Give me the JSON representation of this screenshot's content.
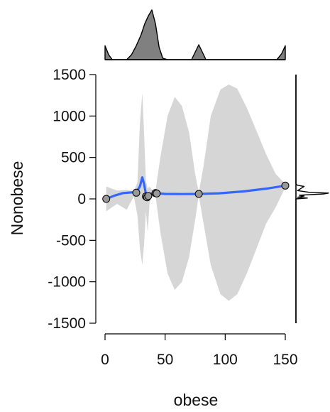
{
  "chart_data": {
    "type": "scatter",
    "xlabel": "obese",
    "ylabel": "Nonobese",
    "xlim": [
      0,
      150
    ],
    "ylim": [
      -1500,
      1500
    ],
    "x_ticks": [
      0,
      50,
      100,
      150
    ],
    "y_ticks": [
      1500,
      1000,
      500,
      0,
      -500,
      -1000,
      -1500
    ],
    "x_tick_labels": [
      "0",
      "50",
      "100",
      "150"
    ],
    "y_tick_labels": [
      "1500",
      "1000",
      "500",
      "0",
      "-500",
      "-1000",
      "-1500"
    ],
    "grid": false,
    "points": [
      {
        "x": 1,
        "y": 0
      },
      {
        "x": 26,
        "y": 75
      },
      {
        "x": 34,
        "y": 30
      },
      {
        "x": 35,
        "y": 20
      },
      {
        "x": 36,
        "y": 35
      },
      {
        "x": 42,
        "y": 70
      },
      {
        "x": 43,
        "y": 65
      },
      {
        "x": 78,
        "y": 60
      },
      {
        "x": 150,
        "y": 160
      }
    ],
    "smooth_line": [
      {
        "x": 1,
        "y": 0
      },
      {
        "x": 8,
        "y": 40
      },
      {
        "x": 15,
        "y": 70
      },
      {
        "x": 22,
        "y": 78
      },
      {
        "x": 26,
        "y": 80
      },
      {
        "x": 29,
        "y": 150
      },
      {
        "x": 31,
        "y": 260
      },
      {
        "x": 32.5,
        "y": 180
      },
      {
        "x": 34,
        "y": 60
      },
      {
        "x": 35,
        "y": 10
      },
      {
        "x": 36.5,
        "y": 20
      },
      {
        "x": 38,
        "y": 60
      },
      {
        "x": 42,
        "y": 70
      },
      {
        "x": 50,
        "y": 60
      },
      {
        "x": 65,
        "y": 58
      },
      {
        "x": 78,
        "y": 60
      },
      {
        "x": 95,
        "y": 68
      },
      {
        "x": 115,
        "y": 90
      },
      {
        "x": 135,
        "y": 125
      },
      {
        "x": 150,
        "y": 160
      }
    ],
    "confidence_band": [
      {
        "x": 1,
        "lo": -150,
        "hi": 150
      },
      {
        "x": 10,
        "lo": -60,
        "hi": 100
      },
      {
        "x": 18,
        "lo": -130,
        "hi": 110
      },
      {
        "x": 24,
        "lo": 30,
        "hi": 90
      },
      {
        "x": 27,
        "lo": -200,
        "hi": 200
      },
      {
        "x": 29,
        "lo": -600,
        "hi": 900
      },
      {
        "x": 31,
        "lo": -800,
        "hi": 1280
      },
      {
        "x": 32.5,
        "lo": -550,
        "hi": 800
      },
      {
        "x": 34,
        "lo": -150,
        "hi": 220
      },
      {
        "x": 35.5,
        "lo": -400,
        "hi": 120
      },
      {
        "x": 37,
        "lo": -50,
        "hi": 150
      },
      {
        "x": 39,
        "lo": 40,
        "hi": 110
      },
      {
        "x": 42,
        "lo": 40,
        "hi": 100
      },
      {
        "x": 46,
        "lo": -400,
        "hi": 500
      },
      {
        "x": 52,
        "lo": -900,
        "hi": 1000
      },
      {
        "x": 58,
        "lo": -1100,
        "hi": 1230
      },
      {
        "x": 64,
        "lo": -1000,
        "hi": 1120
      },
      {
        "x": 70,
        "lo": -700,
        "hi": 800
      },
      {
        "x": 75,
        "lo": -250,
        "hi": 300
      },
      {
        "x": 78,
        "lo": 40,
        "hi": 80
      },
      {
        "x": 82,
        "lo": -300,
        "hi": 400
      },
      {
        "x": 88,
        "lo": -800,
        "hi": 1000
      },
      {
        "x": 96,
        "lo": -1150,
        "hi": 1320
      },
      {
        "x": 103,
        "lo": -1230,
        "hi": 1380
      },
      {
        "x": 110,
        "lo": -1150,
        "hi": 1330
      },
      {
        "x": 118,
        "lo": -900,
        "hi": 1100
      },
      {
        "x": 126,
        "lo": -600,
        "hi": 820
      },
      {
        "x": 134,
        "lo": -300,
        "hi": 540
      },
      {
        "x": 142,
        "lo": -100,
        "hi": 300
      },
      {
        "x": 150,
        "lo": 140,
        "hi": 180
      }
    ],
    "top_density": [
      {
        "x": 0,
        "d": 0.28
      },
      {
        "x": 3,
        "d": 0.1
      },
      {
        "x": 6,
        "d": 0.0
      },
      {
        "x": 18,
        "d": 0.0
      },
      {
        "x": 22,
        "d": 0.1
      },
      {
        "x": 26,
        "d": 0.28
      },
      {
        "x": 30,
        "d": 0.5
      },
      {
        "x": 33,
        "d": 0.72
      },
      {
        "x": 36,
        "d": 0.88
      },
      {
        "x": 39,
        "d": 1.0
      },
      {
        "x": 42,
        "d": 0.72
      },
      {
        "x": 45,
        "d": 0.25
      },
      {
        "x": 48,
        "d": 0.03
      },
      {
        "x": 52,
        "d": 0.0
      },
      {
        "x": 72,
        "d": 0.0
      },
      {
        "x": 75,
        "d": 0.15
      },
      {
        "x": 78,
        "d": 0.3
      },
      {
        "x": 81,
        "d": 0.15
      },
      {
        "x": 84,
        "d": 0.0
      },
      {
        "x": 143,
        "d": 0.0
      },
      {
        "x": 147,
        "d": 0.12
      },
      {
        "x": 150,
        "d": 0.28
      }
    ],
    "right_density": [
      {
        "y": -1500,
        "d": 0.0
      },
      {
        "y": 0,
        "d": 0.0
      },
      {
        "y": 10,
        "d": 0.35
      },
      {
        "y": 20,
        "d": 0.05
      },
      {
        "y": 35,
        "d": 0.25
      },
      {
        "y": 45,
        "d": 0.1
      },
      {
        "y": 60,
        "d": 0.85
      },
      {
        "y": 70,
        "d": 1.0
      },
      {
        "y": 80,
        "d": 0.4
      },
      {
        "y": 100,
        "d": 0.05
      },
      {
        "y": 150,
        "d": 0.25
      },
      {
        "y": 165,
        "d": 0.05
      },
      {
        "y": 180,
        "d": 0.0
      },
      {
        "y": 1500,
        "d": 0.0
      }
    ],
    "colors": {
      "band": "#d6d6d6",
      "smooth_line": "#3366ff",
      "point_fill": "#999999",
      "point_stroke": "#000000",
      "top_density_fill": "#808080",
      "axis": "#000000"
    }
  }
}
